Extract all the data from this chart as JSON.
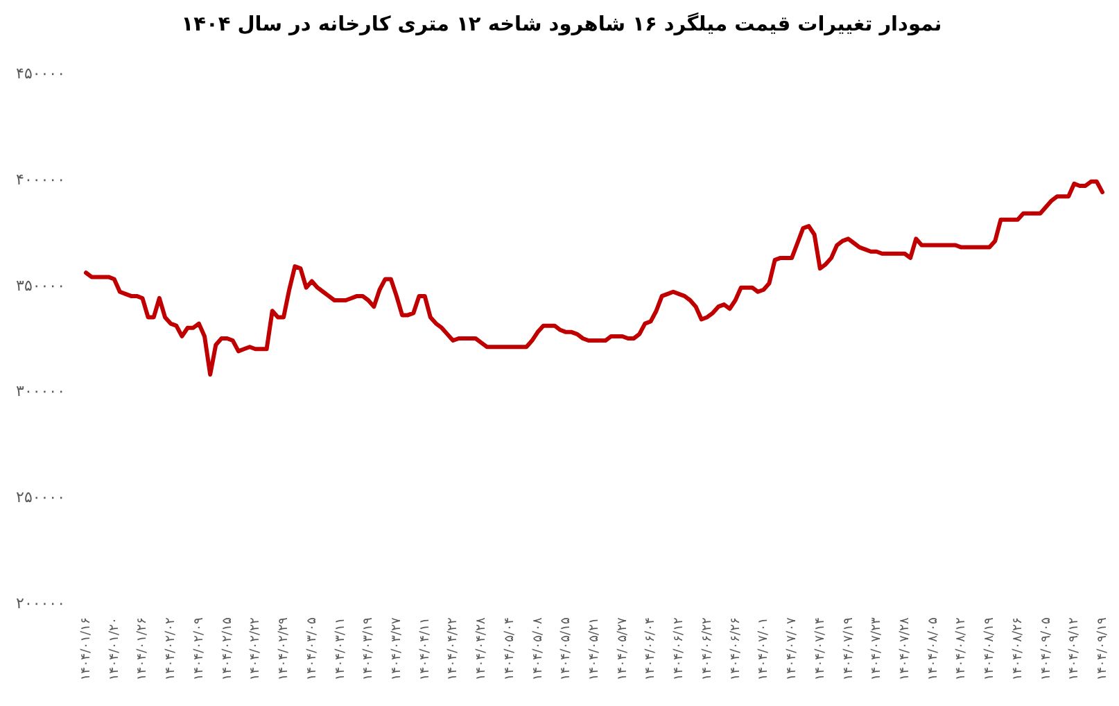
{
  "chart_data": {
    "type": "line",
    "title": "نمودار تغییرات قیمت میلگرد ۱۶ شاهرود شاخه ۱۲ متری کارخانه در سال ۱۴۰۴",
    "categories": [
      "۱۴۰۴/۰۱/۱۶",
      null,
      null,
      null,
      null,
      "۱۴۰۴/۰۱/۲۰",
      null,
      null,
      null,
      null,
      "۱۴۰۴/۰۱/۲۶",
      null,
      null,
      null,
      null,
      "۱۴۰۴/۰۲/۰۲",
      null,
      null,
      null,
      null,
      "۱۴۰۴/۰۲/۰۹",
      null,
      null,
      null,
      null,
      "۱۴۰۴/۰۲/۱۵",
      null,
      null,
      null,
      null,
      "۱۴۰۴/۰۲/۲۲",
      null,
      null,
      null,
      null,
      "۱۴۰۴/۰۲/۲۹",
      null,
      null,
      null,
      null,
      "۱۴۰۴/۰۳/۰۵",
      null,
      null,
      null,
      null,
      "۱۴۰۴/۰۳/۱۱",
      null,
      null,
      null,
      null,
      "۱۴۰۴/۰۳/۱۹",
      null,
      null,
      null,
      null,
      "۱۴۰۴/۰۳/۲۷",
      null,
      null,
      null,
      null,
      "۱۴۰۴/۰۴/۱۱",
      null,
      null,
      null,
      null,
      "۱۴۰۴/۰۴/۲۲",
      null,
      null,
      null,
      null,
      "۱۴۰۴/۰۴/۲۸",
      null,
      null,
      null,
      null,
      "۱۴۰۴/۰۵/۰۴",
      null,
      null,
      null,
      null,
      "۱۴۰۴/۰۵/۰۸",
      null,
      null,
      null,
      null,
      "۱۴۰۴/۰۵/۱۵",
      null,
      null,
      null,
      null,
      "۱۴۰۴/۰۵/۲۱",
      null,
      null,
      null,
      null,
      "۱۴۰۴/۰۵/۲۷",
      null,
      null,
      null,
      null,
      "۱۴۰۴/۰۶/۰۴",
      null,
      null,
      null,
      null,
      "۱۴۰۴/۰۶/۱۲",
      null,
      null,
      null,
      null,
      "۱۴۰۴/۰۶/۲۲",
      null,
      null,
      null,
      null,
      "۱۴۰۴/۰۶/۲۶",
      null,
      null,
      null,
      null,
      "۱۴۰۴/۰۷/۰۱",
      null,
      null,
      null,
      null,
      "۱۴۰۴/۰۷/۰۷",
      null,
      null,
      null,
      null,
      "۱۴۰۴/۰۷/۱۴",
      null,
      null,
      null,
      null,
      "۱۴۰۴/۰۷/۱۹",
      null,
      null,
      null,
      null,
      "۱۴۰۴/۰۷/۲۳",
      null,
      null,
      null,
      null,
      "۱۴۰۴/۰۷/۲۸",
      null,
      null,
      null,
      null,
      "۱۴۰۴/۰۸/۰۵",
      null,
      null,
      null,
      null,
      "۱۴۰۴/۰۸/۱۲",
      null,
      null,
      null,
      null,
      "۱۴۰۴/۰۸/۱۹",
      null,
      null,
      null,
      null,
      "۱۴۰۴/۰۸/۲۶",
      null,
      null,
      null,
      null,
      "۱۴۰۴/۰۹/۰۵",
      null,
      null,
      null,
      null,
      "۱۴۰۴/۰۹/۱۲",
      null,
      null,
      null,
      null,
      "۱۴۰۴/۰۹/۱۹"
    ],
    "values": [
      356000,
      354000,
      354000,
      354000,
      354000,
      353000,
      347000,
      346000,
      345000,
      345000,
      344000,
      335000,
      335000,
      344000,
      335000,
      332000,
      331000,
      326000,
      330000,
      330000,
      332000,
      326000,
      308000,
      322000,
      325000,
      325000,
      324000,
      319000,
      320000,
      321000,
      320000,
      320000,
      320000,
      338000,
      335000,
      335000,
      348000,
      359000,
      358000,
      349000,
      352000,
      349000,
      347000,
      345000,
      343000,
      343000,
      343000,
      344000,
      345000,
      345000,
      343000,
      340000,
      348000,
      353000,
      353000,
      345000,
      336000,
      336000,
      337000,
      345000,
      345000,
      335000,
      332000,
      330000,
      327000,
      324000,
      325000,
      325000,
      325000,
      325000,
      323000,
      321000,
      321000,
      321000,
      321000,
      321000,
      321000,
      321000,
      321000,
      324000,
      328000,
      331000,
      331000,
      331000,
      329000,
      328000,
      328000,
      327000,
      325000,
      324000,
      324000,
      324000,
      324000,
      326000,
      326000,
      326000,
      325000,
      325000,
      327000,
      332000,
      333000,
      338000,
      345000,
      346000,
      347000,
      346000,
      345000,
      343000,
      340000,
      334000,
      335000,
      337000,
      340000,
      341000,
      339000,
      343000,
      349000,
      349000,
      349000,
      347000,
      348000,
      351000,
      362000,
      363000,
      363000,
      363000,
      370000,
      377000,
      378000,
      374000,
      358000,
      360000,
      363000,
      369000,
      371000,
      372000,
      370000,
      368000,
      367000,
      366000,
      366000,
      365000,
      365000,
      365000,
      365000,
      365000,
      363000,
      372000,
      369000,
      369000,
      369000,
      369000,
      369000,
      369000,
      369000,
      368000,
      368000,
      368000,
      368000,
      368000,
      368000,
      371000,
      381000,
      381000,
      381000,
      381000,
      384000,
      384000,
      384000,
      384000,
      387000,
      390000,
      392000,
      392000,
      392000,
      398000,
      397000,
      397000,
      399000,
      399000,
      394000
    ],
    "color": "#c00000",
    "ylim": [
      200000,
      450000
    ],
    "yticks": [
      {
        "value": 200000,
        "label": "۲۰۰۰۰۰"
      },
      {
        "value": 250000,
        "label": "۲۵۰۰۰۰"
      },
      {
        "value": 300000,
        "label": "۳۰۰۰۰۰"
      },
      {
        "value": 350000,
        "label": "۳۵۰۰۰۰"
      },
      {
        "value": 400000,
        "label": "۴۰۰۰۰۰"
      },
      {
        "value": 450000,
        "label": "۴۵۰۰۰۰"
      }
    ]
  }
}
